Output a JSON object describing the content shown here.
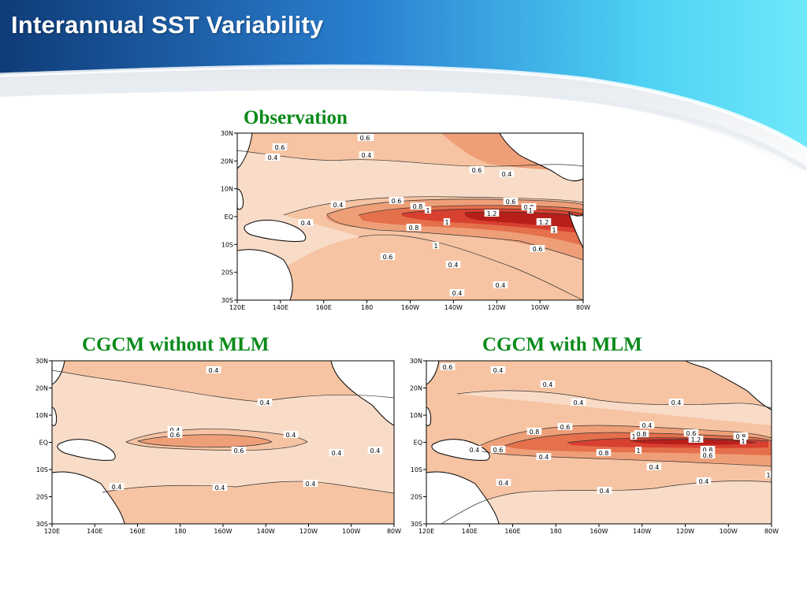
{
  "slide": {
    "title": "Interannual SST Variability",
    "colors": {
      "header_dark": "#0f3b78",
      "header_light": "#5fe3f8",
      "title_green": "#0a8a1a"
    }
  },
  "palette": [
    "#f9dcc8",
    "#f6c4a3",
    "#ef9f78",
    "#e5704c",
    "#d84030",
    "#b81f1a"
  ],
  "lat_ticks": [
    "30N",
    "20N",
    "10N",
    "EQ",
    "10S",
    "20S",
    "30S"
  ],
  "lon_ticks": [
    "120E",
    "140E",
    "160E",
    "180",
    "160W",
    "140W",
    "120W",
    "100W",
    "80W"
  ],
  "panels": [
    {
      "key": "obs",
      "title": "Observation",
      "contour_labels": [
        "0.6",
        "0.6",
        "0.4",
        "0.4",
        "0.6",
        "0.4",
        "0.4",
        "0.6",
        "0.8",
        "1",
        "0.6",
        "0.8",
        "1",
        "1.2",
        "1",
        "0.4",
        "0.8",
        "1",
        "1.2",
        "1",
        "0.6",
        "0.6",
        "0.4",
        "0.4",
        "0.4",
        "0.6"
      ]
    },
    {
      "key": "nomlm",
      "title": "CGCM without MLM",
      "contour_labels": [
        "0.4",
        "0.4",
        "0.4",
        "0.6",
        "0.4",
        "0.6",
        "0.4",
        "0.4",
        "0.4",
        "0.4",
        "0.4"
      ]
    },
    {
      "key": "mlm",
      "title": "CGCM with MLM",
      "contour_labels": [
        "0.6",
        "0.4",
        "0.4",
        "0.4",
        "0.4",
        "0.6",
        "0.8",
        "0.4",
        "1",
        "0.8",
        "0.6",
        "0.8",
        "1.2",
        "1",
        "0.4",
        "0.6",
        "0.8",
        "0.8",
        "1",
        "0.4",
        "0.6",
        "0.4",
        "1",
        "0.4",
        "0.4",
        "0.4"
      ]
    }
  ]
}
